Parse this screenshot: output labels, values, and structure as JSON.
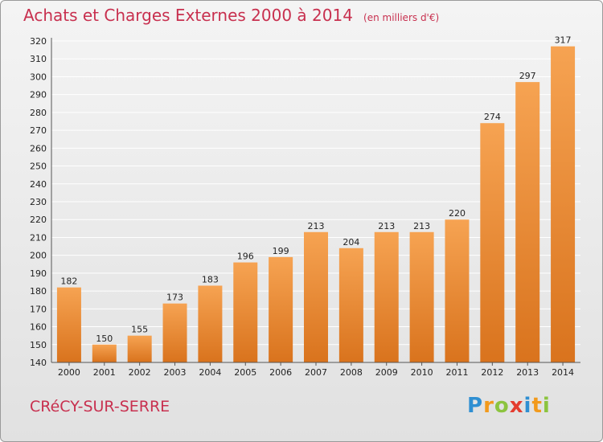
{
  "header": {
    "title": "Achats et Charges Externes 2000 à 2014",
    "unit": "(en milliers d'€)"
  },
  "footer": {
    "commune": "CRéCY-SUR-SERRE",
    "brand_letters": [
      {
        "char": "P",
        "color": "#2f8fd2"
      },
      {
        "char": "r",
        "color": "#f29a1c"
      },
      {
        "char": "o",
        "color": "#8cc43f"
      },
      {
        "char": "x",
        "color": "#e43c2f"
      },
      {
        "char": "i",
        "color": "#2f8fd2"
      },
      {
        "char": "t",
        "color": "#f29a1c"
      },
      {
        "char": "i",
        "color": "#8cc43f"
      }
    ]
  },
  "colors": {
    "title": "#c8304f",
    "bar_light": "#f6a352",
    "bar_dark": "#d9731d",
    "grid": "#ffffff",
    "axis_text": "#222222"
  },
  "chart_data": {
    "type": "bar",
    "categories": [
      "2000",
      "2001",
      "2002",
      "2003",
      "2004",
      "2005",
      "2006",
      "2007",
      "2008",
      "2009",
      "2010",
      "2011",
      "2012",
      "2013",
      "2014"
    ],
    "values": [
      182,
      150,
      155,
      173,
      183,
      196,
      199,
      213,
      204,
      213,
      213,
      220,
      274,
      297,
      317
    ],
    "ylim": [
      140,
      320
    ],
    "yticks": [
      140,
      150,
      160,
      170,
      180,
      190,
      200,
      210,
      220,
      230,
      240,
      250,
      260,
      270,
      280,
      290,
      300,
      310,
      320
    ],
    "grid": true,
    "data_labels": true
  }
}
